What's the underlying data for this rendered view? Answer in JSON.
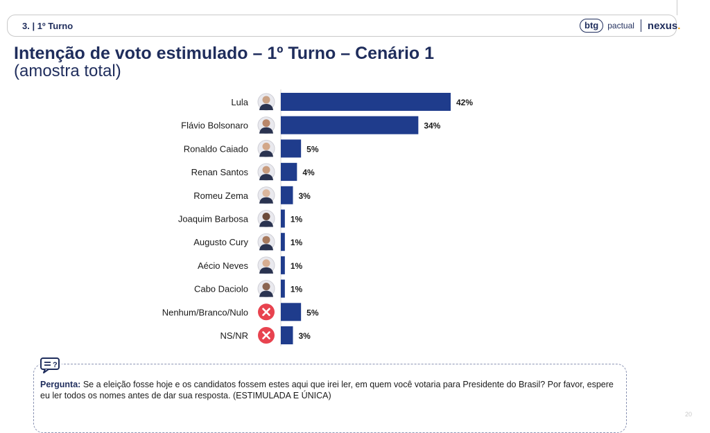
{
  "header": {
    "section": "3. | 1º Turno",
    "logo_btg": "btg",
    "logo_pactual": "pactual",
    "logo_nexus": "nexus",
    "logo_dot": "."
  },
  "title": "Intenção de voto estimulado – 1º Turno – Cenário 1",
  "subtitle": "(amostra total)",
  "chart_data": {
    "type": "bar",
    "orientation": "horizontal",
    "categories": [
      "Lula",
      "Flávio Bolsonaro",
      "Ronaldo Caiado",
      "Renan Santos",
      "Romeu Zema",
      "Joaquim Barbosa",
      "Augusto Cury",
      "Aécio Neves",
      "Cabo Daciolo",
      "Nenhum/Branco/Nulo",
      "NS/NR"
    ],
    "values": [
      42,
      34,
      5,
      4,
      3,
      1,
      1,
      1,
      1,
      5,
      3
    ],
    "value_labels": [
      "42%",
      "34%",
      "5%",
      "4%",
      "3%",
      "1%",
      "1%",
      "1%",
      "1%",
      "5%",
      "3%"
    ],
    "icons": [
      "avatar",
      "avatar",
      "avatar",
      "avatar",
      "avatar",
      "avatar",
      "avatar",
      "avatar",
      "avatar",
      "x-circle-icon",
      "x-circle-icon"
    ],
    "bar_color": "#1f3c8c",
    "xlim": [
      0,
      42
    ]
  },
  "question": {
    "label": "Pergunta:",
    "text": "Se a eleição fosse hoje e os candidatos fossem estes aqui que irei ler, em quem você votaria para Presidente do Brasil? Por favor, espere eu ler todos os nomes antes de dar sua resposta. (ESTIMULADA E ÚNICA)"
  },
  "page_number": "20"
}
